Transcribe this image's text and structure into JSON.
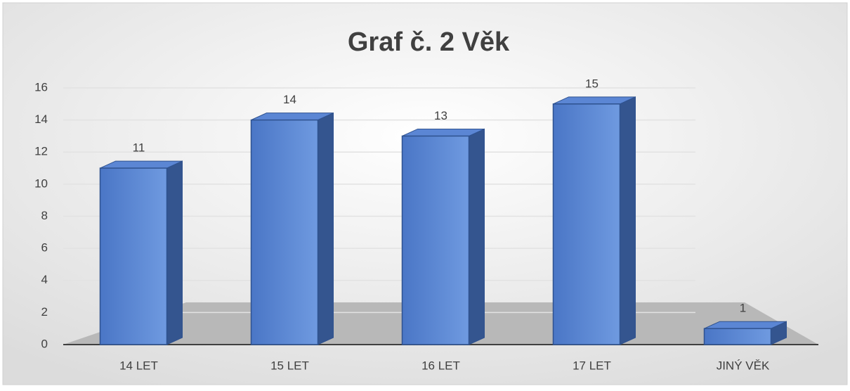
{
  "chart_data": {
    "type": "bar",
    "title": "Graf č. 2 Věk",
    "categories": [
      "14 LET",
      "15 LET",
      "16 LET",
      "17 LET",
      "JINÝ VĚK"
    ],
    "values": [
      11,
      14,
      13,
      15,
      1
    ],
    "color": "#4472c4",
    "ylim": [
      0,
      16
    ],
    "yticks": [
      0,
      2,
      4,
      6,
      8,
      10,
      12,
      14,
      16
    ],
    "grid": true
  }
}
